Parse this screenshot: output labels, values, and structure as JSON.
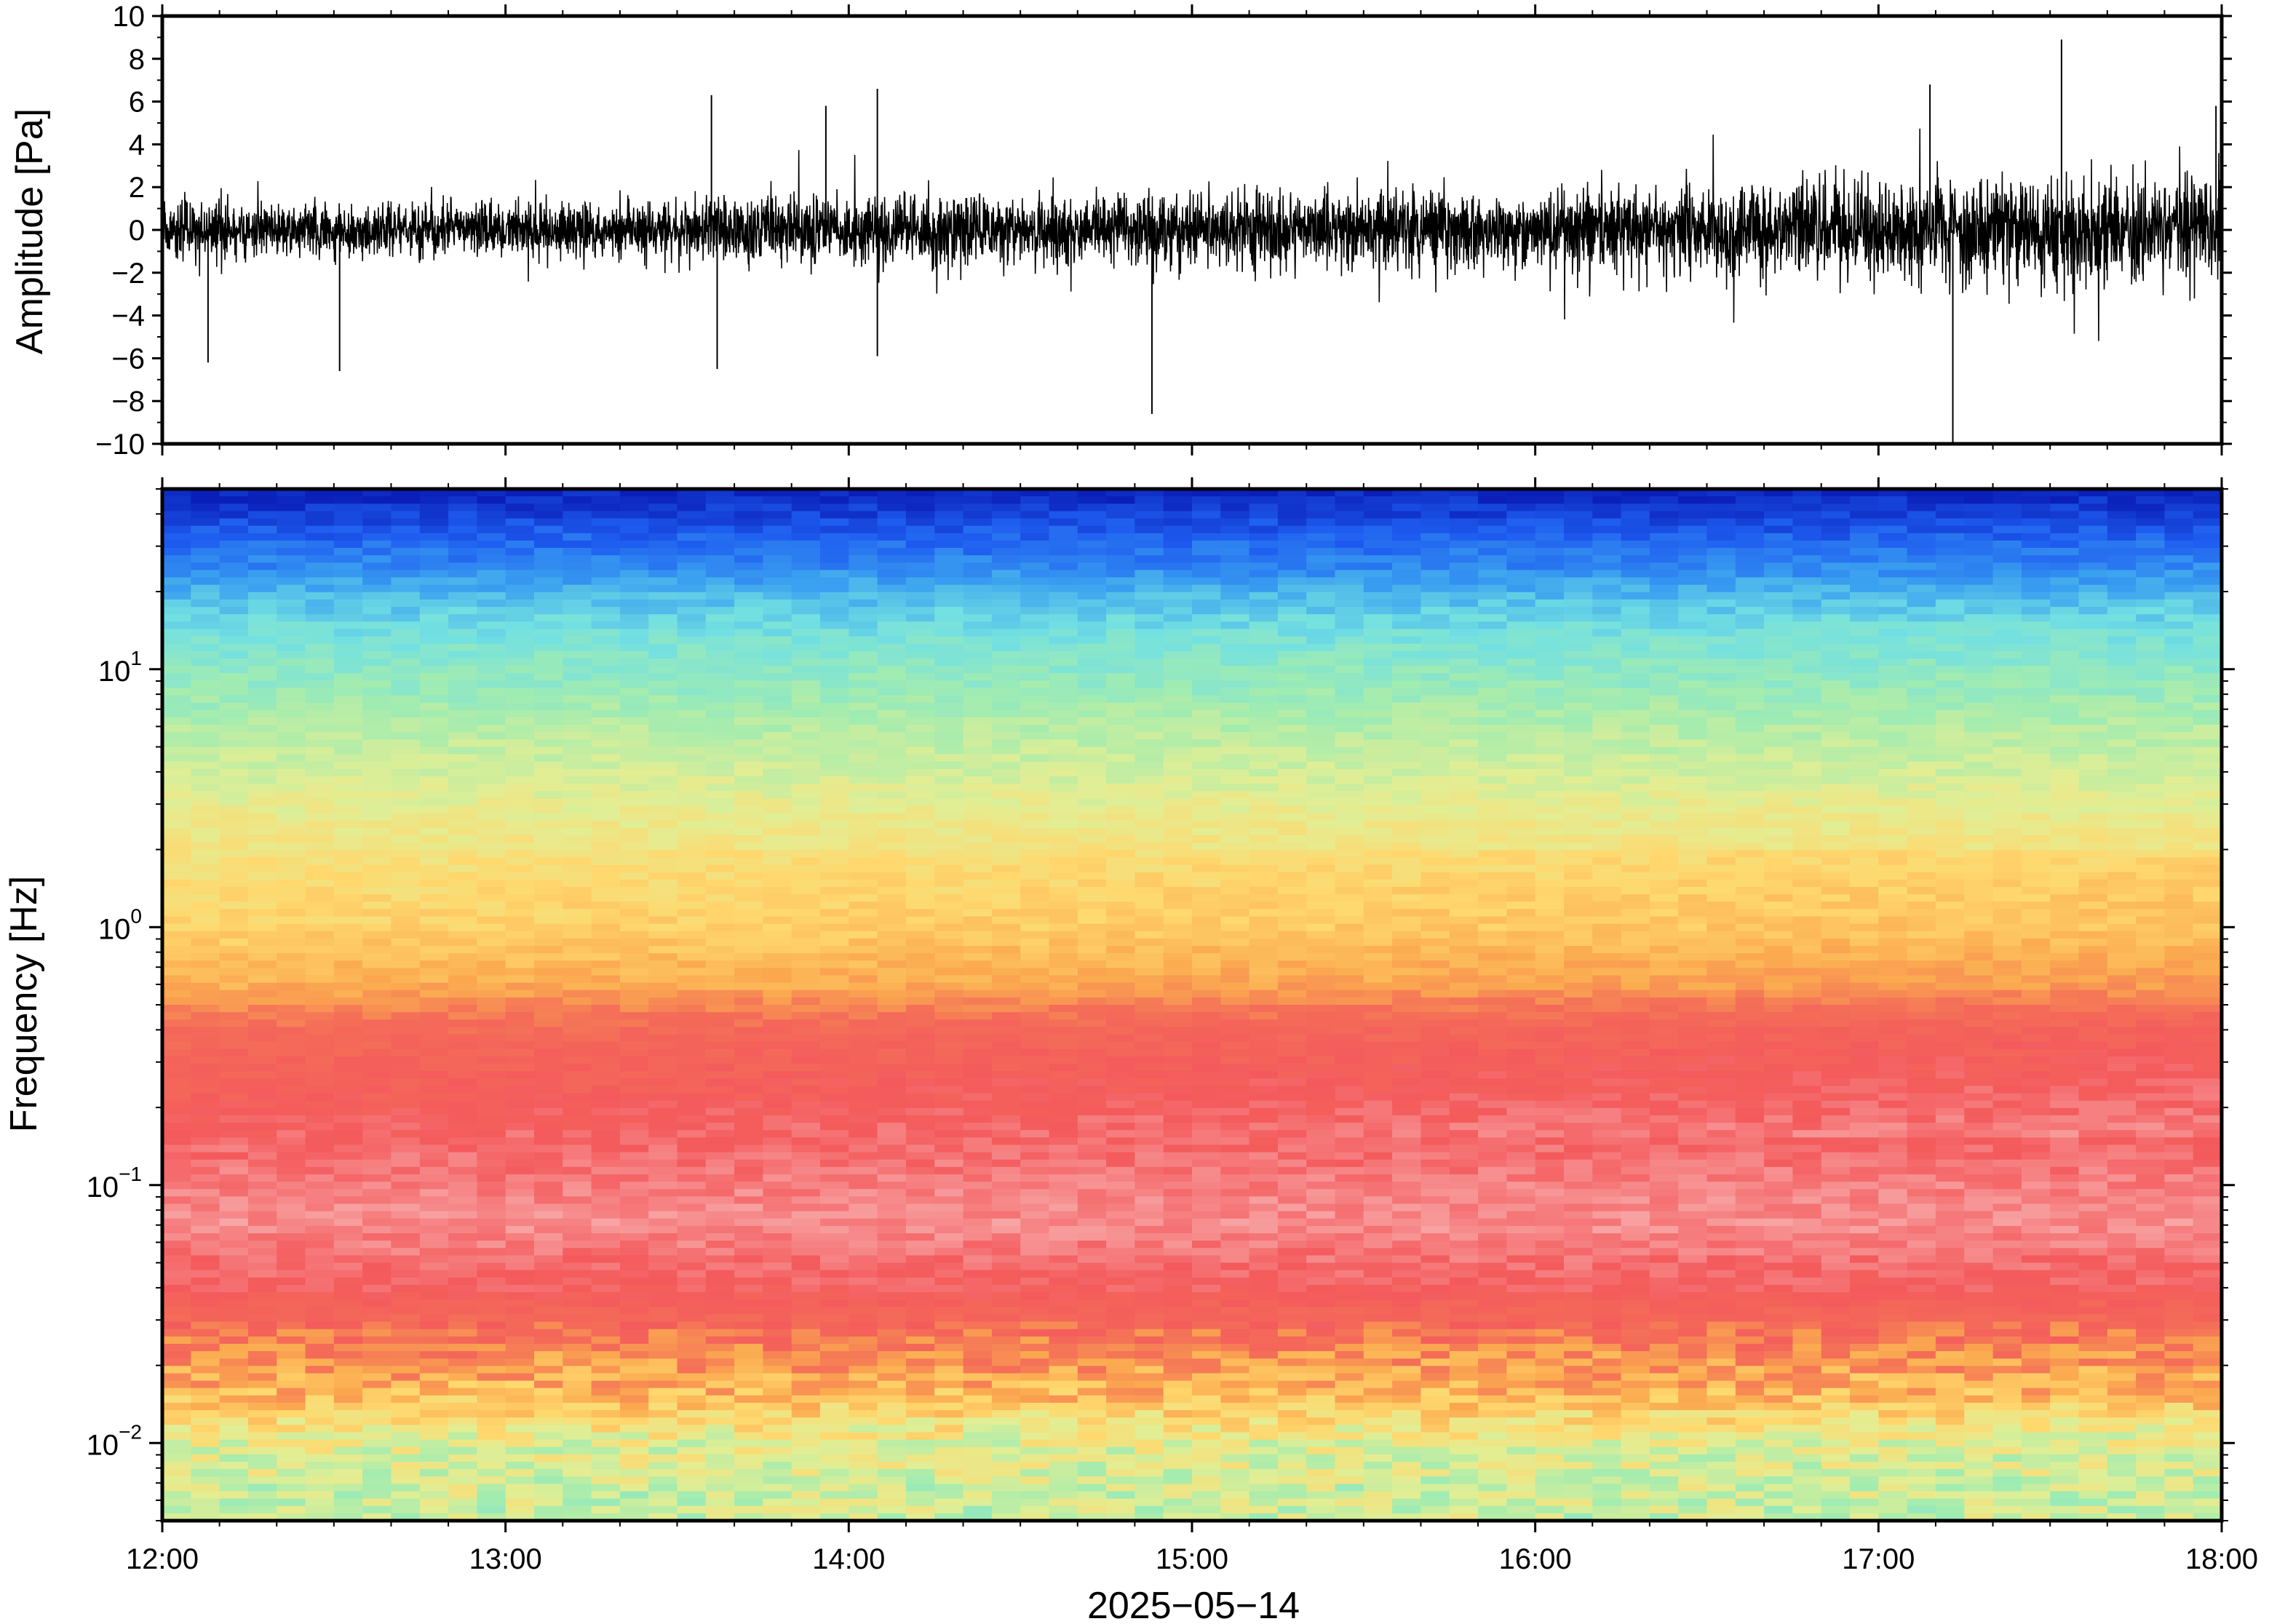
{
  "chart_data": [
    {
      "type": "line",
      "panel": "waveform",
      "ylabel": "Amplitude [Pa]",
      "ylim": [
        -10,
        10
      ],
      "y_ticks": [
        10,
        8,
        6,
        4,
        2,
        0,
        -2,
        -4,
        -6,
        -8,
        -10
      ],
      "y_tick_labels": [
        "10",
        "8",
        "6",
        "4",
        "2",
        "0",
        "−2",
        "−4",
        "−6",
        "−8",
        "−10"
      ],
      "x_range": [
        "12:00",
        "18:00"
      ],
      "envelope": {
        "hours": [
          12.0,
          12.5,
          13.0,
          13.5,
          14.0,
          14.5,
          15.0,
          15.5,
          16.0,
          16.5,
          17.0,
          17.5,
          18.0
        ],
        "typical_amplitude": [
          1.6,
          1.5,
          1.5,
          1.8,
          2.0,
          2.0,
          2.1,
          2.2,
          2.3,
          2.4,
          2.8,
          3.2,
          3.0
        ]
      },
      "spikes": [
        {
          "time": "12:08",
          "value": -6.2
        },
        {
          "time": "12:31",
          "value": -6.6
        },
        {
          "time": "13:36",
          "value": 6.3
        },
        {
          "time": "13:37",
          "value": -6.5
        },
        {
          "time": "13:56",
          "value": 5.8
        },
        {
          "time": "14:05",
          "value": -5.9
        },
        {
          "time": "14:05",
          "value": 6.6
        },
        {
          "time": "14:53",
          "value": -8.6
        },
        {
          "time": "17:09",
          "value": 6.8
        },
        {
          "time": "17:13",
          "value": -10.0
        },
        {
          "time": "17:32",
          "value": 8.9
        },
        {
          "time": "17:59",
          "value": 5.8
        }
      ],
      "line_color": "#000000"
    },
    {
      "type": "heatmap",
      "panel": "spectrogram",
      "ylabel": "Frequency [Hz]",
      "y_scale": "log",
      "ylim": [
        0.005,
        50
      ],
      "y_major_ticks": [
        0.01,
        0.1,
        1,
        10
      ],
      "y_tick_labels": [
        {
          "base": "10",
          "exponent": "−2"
        },
        {
          "base": "10",
          "exponent": "−1"
        },
        {
          "base": "10",
          "exponent": "0"
        },
        {
          "base": "10",
          "exponent": "1"
        }
      ],
      "x_ticks": [
        "12:00",
        "13:00",
        "14:00",
        "15:00",
        "16:00",
        "17:00",
        "18:00"
      ],
      "xlabel": "2025−05−14",
      "colormap": [
        "#0a1fb8",
        "#1e5cf0",
        "#3aa0f0",
        "#72e0e2",
        "#a2ecb0",
        "#e2ee94",
        "#ffd86e",
        "#fbaa50",
        "#f46e58",
        "#f45a5c",
        "#f8a8a8",
        "#fcc8c8"
      ],
      "frequency_profile": {
        "freq_hz": [
          50,
          40,
          25,
          14,
          8,
          4,
          2,
          1,
          0.6,
          0.4,
          0.2,
          0.1,
          0.07,
          0.04,
          0.025,
          0.015,
          0.01,
          0.006
        ],
        "colormap_position": [
          0.0,
          0.05,
          0.15,
          0.28,
          0.35,
          0.43,
          0.5,
          0.55,
          0.62,
          0.74,
          0.8,
          0.86,
          0.88,
          0.82,
          0.72,
          0.6,
          0.46,
          0.42
        ]
      }
    }
  ]
}
